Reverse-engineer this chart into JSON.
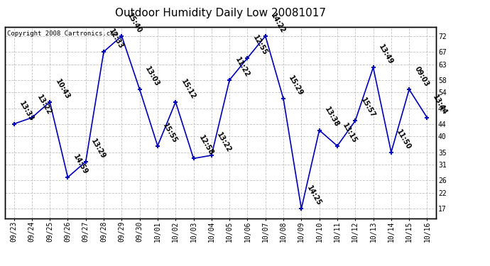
{
  "title": "Outdoor Humidity Daily Low 20081017",
  "copyright": "Copyright 2008 Cartronics.com",
  "line_color": "#0000bb",
  "marker_color": "#0000bb",
  "bg_color": "#ffffff",
  "grid_color": "#bbbbbb",
  "ylim": [
    14,
    75
  ],
  "yticks": [
    17,
    22,
    26,
    31,
    35,
    40,
    44,
    49,
    54,
    58,
    63,
    67,
    72
  ],
  "dates": [
    "09/23",
    "09/24",
    "09/25",
    "09/26",
    "09/27",
    "09/28",
    "09/29",
    "09/30",
    "10/01",
    "10/02",
    "10/03",
    "10/04",
    "10/05",
    "10/06",
    "10/07",
    "10/08",
    "10/09",
    "10/10",
    "10/11",
    "10/12",
    "10/13",
    "10/14",
    "10/15",
    "10/16"
  ],
  "values": [
    44,
    46,
    51,
    27,
    32,
    67,
    72,
    55,
    37,
    51,
    33,
    34,
    58,
    65,
    72,
    52,
    17,
    42,
    37,
    45,
    62,
    35,
    55,
    46
  ],
  "labels": [
    "13:33",
    "13:22",
    "10:43",
    "14:59",
    "13:29",
    "12:33",
    "15:40",
    "13:03",
    "15:55",
    "15:12",
    "12:58",
    "13:22",
    "11:22",
    "12:55",
    "14:22",
    "15:29",
    "14:25",
    "13:38",
    "13:15",
    "15:57",
    "13:49",
    "11:50",
    "09:03",
    "13:44"
  ],
  "title_fontsize": 11,
  "label_fontsize": 7,
  "axis_fontsize": 7,
  "copyright_fontsize": 6.5
}
